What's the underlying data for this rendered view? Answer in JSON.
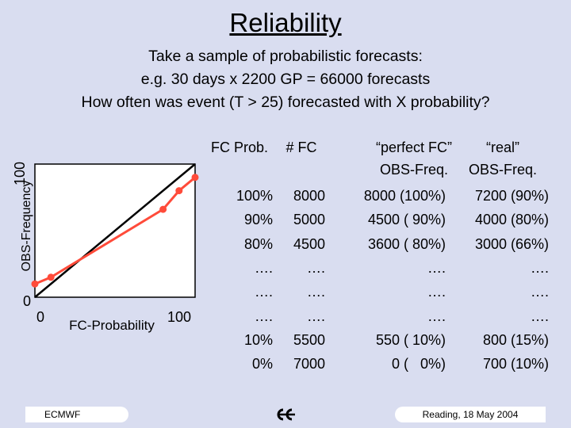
{
  "title": "Reliability",
  "intro": [
    "Take a sample of probabilistic forecasts:",
    "e.g. 30 days x 2200 GP = 66000 forecasts",
    "How often was event (T > 25) forecasted with X probability?"
  ],
  "chart_data": {
    "type": "line",
    "xlabel": "FC-Probability",
    "ylabel": "OBS-Frequency",
    "xlim": [
      0,
      100
    ],
    "ylim": [
      0,
      100
    ],
    "x_ticks": [
      "0",
      "100"
    ],
    "y_ticks": [
      "0",
      "100"
    ],
    "series": [
      {
        "color": "#000000",
        "x": [
          0,
          100
        ],
        "y": [
          0,
          100
        ]
      },
      {
        "color": "#ff4b3a",
        "x": [
          0,
          10,
          80,
          90,
          100
        ],
        "y": [
          10,
          15,
          66,
          80,
          90
        ]
      }
    ]
  },
  "table": {
    "headers": [
      "FC Prob.",
      "# FC",
      "“perfect FC”\nOBS-Freq.",
      "“real”\nOBS-Freq."
    ],
    "rows": [
      [
        "100%",
        "8000",
        "8000 (100%)",
        "7200 (90%)"
      ],
      [
        "90%",
        "5000",
        "4500 ( 90%)",
        "4000 (80%)"
      ],
      [
        "80%",
        "4500",
        "3600 ( 80%)",
        "3000 (66%)"
      ],
      [
        "….",
        "….",
        "….",
        "…."
      ],
      [
        "….",
        "….",
        "….",
        "…."
      ],
      [
        "….",
        "….",
        "….",
        "…."
      ],
      [
        "10%",
        "5500",
        "550 ( 10%)",
        "800 (15%)"
      ],
      [
        "0%",
        "7000",
        "0 (   0%)",
        "700 (10%)"
      ]
    ]
  },
  "footer": {
    "left": "ECMWF",
    "right": "Reading, 18 May 2004",
    "logo_icon": "ecmwf-logo-icon"
  },
  "colors": {
    "background": "#d9ddf0",
    "reliability_line": "#ff4b3a",
    "diagonal": "#000000"
  }
}
